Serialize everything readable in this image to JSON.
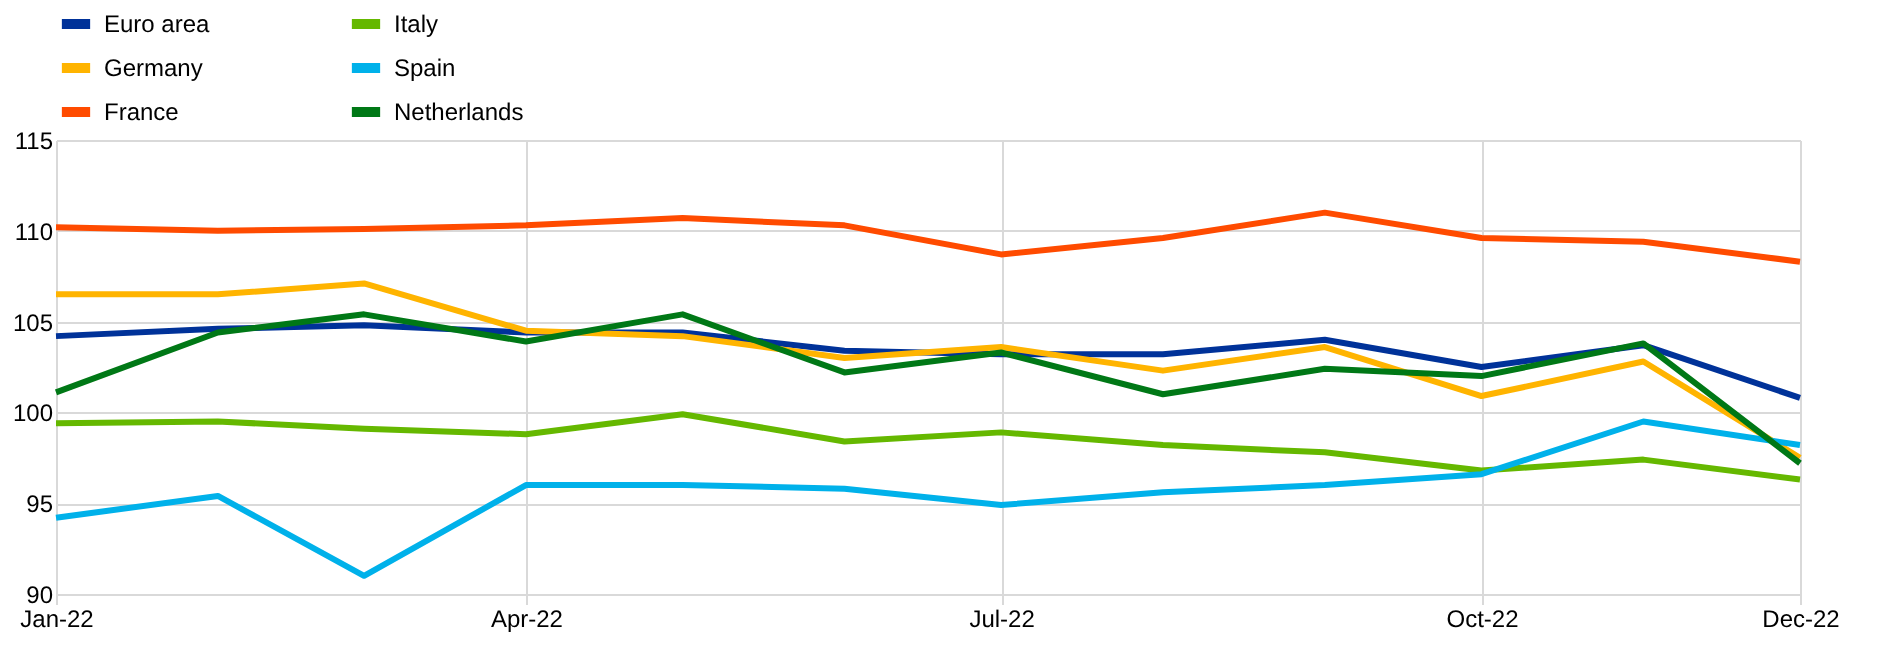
{
  "chart_data": {
    "type": "line",
    "x": [
      "2022-01",
      "2022-02",
      "2022-03",
      "2022-04",
      "2022-05",
      "2022-06",
      "2022-07",
      "2022-08",
      "2022-09",
      "2022-10",
      "2022-11",
      "2022-12"
    ],
    "series": [
      {
        "name": "Euro area",
        "color": "#003299",
        "values": [
          104.2,
          104.6,
          104.8,
          104.4,
          104.4,
          103.4,
          103.2,
          103.2,
          104.0,
          102.5,
          103.7,
          100.8
        ]
      },
      {
        "name": "Germany",
        "color": "#ffb400",
        "values": [
          106.5,
          106.5,
          107.1,
          104.5,
          104.2,
          103.0,
          103.6,
          102.3,
          103.6,
          100.9,
          102.8,
          97.5
        ]
      },
      {
        "name": "France",
        "color": "#ff4b00",
        "values": [
          110.2,
          110.0,
          110.1,
          110.3,
          110.7,
          110.3,
          108.7,
          109.6,
          111.0,
          109.6,
          109.4,
          108.3
        ]
      },
      {
        "name": "Italy",
        "color": "#65b800",
        "values": [
          99.4,
          99.5,
          99.1,
          98.8,
          99.9,
          98.4,
          98.9,
          98.2,
          97.8,
          96.8,
          97.4,
          96.3
        ]
      },
      {
        "name": "Spain",
        "color": "#00b1ea",
        "values": [
          94.2,
          95.4,
          91.0,
          96.0,
          96.0,
          95.8,
          94.9,
          95.6,
          96.0,
          96.6,
          99.5,
          98.2
        ]
      },
      {
        "name": "Netherlands",
        "color": "#007816",
        "values": [
          101.1,
          104.4,
          105.4,
          103.9,
          105.4,
          102.2,
          103.3,
          101.0,
          102.4,
          102.0,
          103.8,
          97.2
        ]
      }
    ],
    "xlim": [
      "2022-01",
      "2022-12"
    ],
    "xticks": [
      {
        "value": "2022-01",
        "label": "Jan-22"
      },
      {
        "value": "2022-04",
        "label": "Apr-22"
      },
      {
        "value": "2022-07",
        "label": "Jul-22"
      },
      {
        "value": "2022-10",
        "label": "Oct-22"
      },
      {
        "value": "2022-12",
        "label": "Dec-22"
      }
    ],
    "ylim": [
      90,
      115
    ],
    "yticks": [
      90,
      95,
      100,
      105,
      110,
      115
    ],
    "grid": true,
    "legend": "top left",
    "line_style": "solid",
    "marker": "none"
  }
}
